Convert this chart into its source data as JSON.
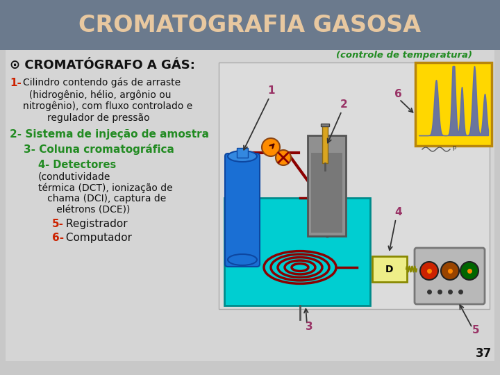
{
  "title": "CROMATOGRAFIA GASOSA",
  "title_color": "#E8C8A0",
  "title_bg_color": "#6B7A8D",
  "slide_bg_color": "#C8C8C8",
  "content_bg_color": "#D8D8D8",
  "diagram_bg_color": "#D0D0D0",
  "heading": "⊙ CROMATÓGRAFO A GÁS:",
  "heading_color": "#111111",
  "controle_text": "(controle de temperatura)",
  "controle_color": "#228B22",
  "item1_num": "1-",
  "item1_text": " Cilindro contendo gás de arraste\n   (hidrogênio, hélio, argônio ou\nnitrogênio), com fluxo controlado e\n     regulador de pressão",
  "item1_num_color": "#CC2200",
  "item1_text_color": "#111111",
  "item2": "2- Sistema de injeção de amostra",
  "item2_color": "#228B22",
  "item3": "3- Coluna cromatográfica",
  "item3_color": "#228B22",
  "item4_green": "4- Detectores ",
  "item4_black": "(condutividade\n   térmica (DCT), ionização de\n      chama (DCI), captura de\n          elétrons (DCE))",
  "item4_green_color": "#228B22",
  "item4_black_color": "#111111",
  "item5_num": "5-",
  "item5_text": " Registrador",
  "item5_num_color": "#CC2200",
  "item5_text_color": "#111111",
  "item6_num": "6-",
  "item6_text": " Computador",
  "item6_num_color": "#CC2200",
  "item6_text_color": "#111111",
  "page_number": "37",
  "num_label_color": "#993366"
}
